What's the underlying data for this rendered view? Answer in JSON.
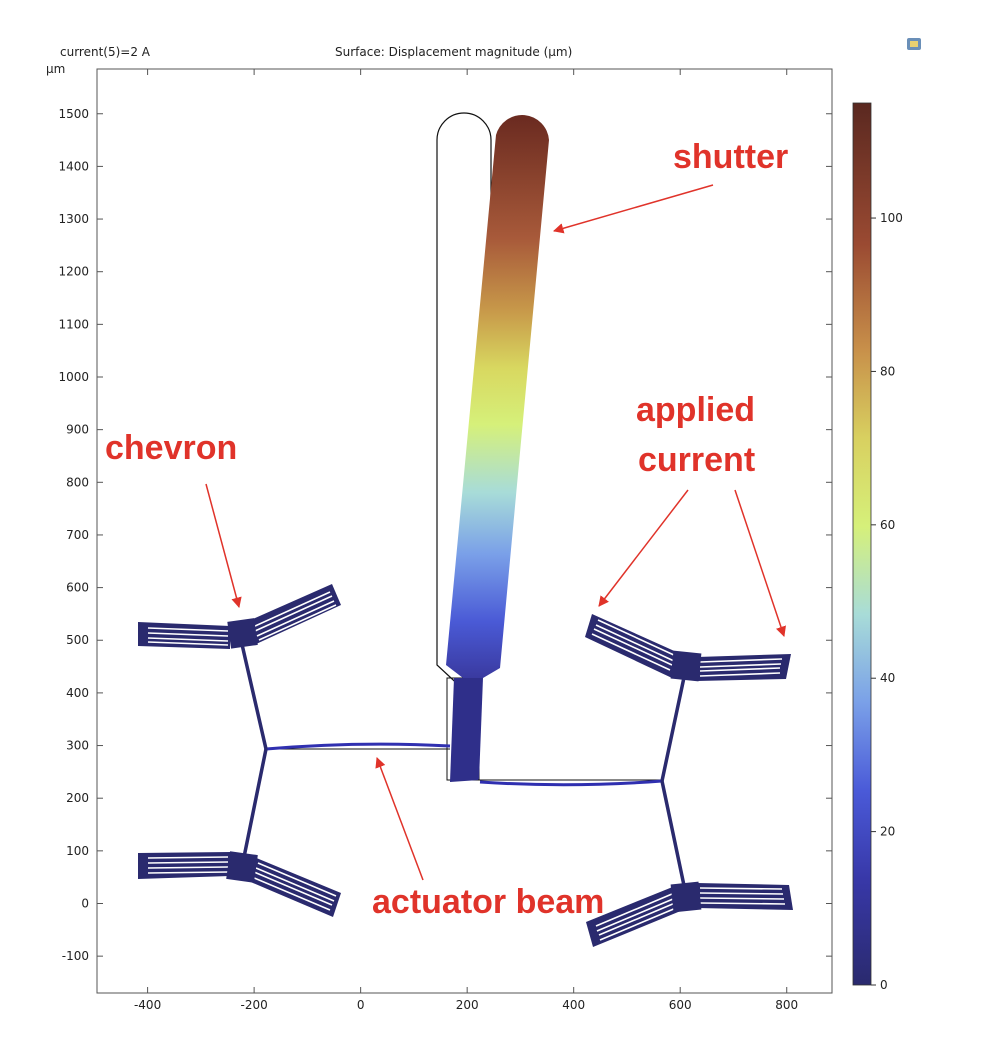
{
  "header": {
    "param_label": "current(5)=2 A",
    "plot_title": "Surface: Displacement magnitude (µm)"
  },
  "toolbar": {
    "icon": "plot-window-icon"
  },
  "axes": {
    "x_unit": "µm",
    "y_unit": "µm",
    "x_ticks": [
      "-400",
      "-200",
      "0",
      "200",
      "400",
      "600",
      "800"
    ],
    "y_ticks": [
      "-100",
      "0",
      "100",
      "200",
      "300",
      "400",
      "500",
      "600",
      "700",
      "800",
      "900",
      "1000",
      "1100",
      "1200",
      "1300",
      "1400",
      "1500"
    ],
    "x_range": [
      -495,
      885
    ],
    "y_range": [
      -170,
      1585
    ]
  },
  "colorbar": {
    "ticks": [
      "0",
      "20",
      "40",
      "60",
      "80",
      "100"
    ],
    "range": [
      0,
      115
    ],
    "colors": [
      "#2a2a6e",
      "#3f4fd0",
      "#6a8fe8",
      "#9fd6e0",
      "#d9f07a",
      "#e0c050",
      "#b46a3a",
      "#8a3a2a",
      "#5a2820"
    ]
  },
  "annotations": {
    "shutter": "shutter",
    "chevron": "chevron",
    "applied_line1": "applied",
    "applied_line2": "current",
    "actuator": "actuator beam",
    "color": "#e0332a"
  }
}
